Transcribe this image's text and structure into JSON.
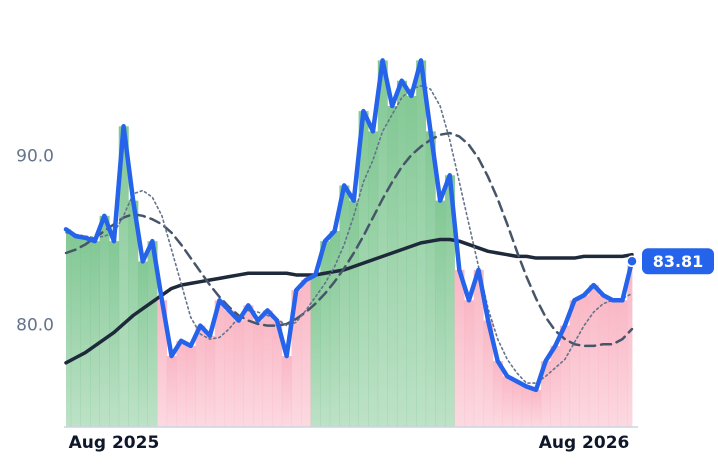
{
  "chart_data": {
    "type": "line",
    "categories": [
      null,
      null,
      null,
      null,
      null,
      "Aug 2025",
      null,
      null,
      null,
      null,
      null,
      null,
      null,
      null,
      null,
      null,
      null,
      null,
      null,
      null,
      null,
      null,
      null,
      null,
      null,
      null,
      null,
      null,
      null,
      null,
      null,
      null,
      null,
      null,
      null,
      null,
      null,
      null,
      null,
      null,
      null,
      null,
      null,
      null,
      null,
      null,
      null,
      null,
      null,
      null,
      null,
      null,
      null,
      null,
      "Aug 2026",
      null,
      null,
      null,
      null,
      null
    ],
    "series": [
      {
        "color": "#2563eb",
        "line_style": "solid",
        "line_width": 4.5,
        "values": [
          85.7,
          85.3,
          85.2,
          85.0,
          86.5,
          85.0,
          91.8,
          87.4,
          83.8,
          85.0,
          81.5,
          78.2,
          79.1,
          78.8,
          80.0,
          79.4,
          81.5,
          80.9,
          80.3,
          81.2,
          80.3,
          80.9,
          80.3,
          78.2,
          82.1,
          82.7,
          83.0,
          85.0,
          85.6,
          88.3,
          87.4,
          92.7,
          91.5,
          95.7,
          93.0,
          94.5,
          93.6,
          95.7,
          91.5,
          87.4,
          88.9,
          83.3,
          81.5,
          83.3,
          80.3,
          77.9,
          77.0,
          76.7,
          76.4,
          76.2,
          77.9,
          78.8,
          80.0,
          81.5,
          81.8,
          82.4,
          81.8,
          81.5,
          81.5,
          83.81
        ]
      },
      {
        "color": "#64748b",
        "line_style": "dotted",
        "line_width": 1.6,
        "values": [
          85.5,
          85.4,
          85.3,
          85.2,
          85.3,
          85.5,
          86.5,
          87.8,
          88.0,
          87.6,
          86.5,
          84.5,
          82.5,
          80.5,
          79.5,
          79.2,
          79.3,
          79.8,
          80.5,
          80.9,
          80.8,
          80.6,
          80.4,
          80.0,
          80.2,
          80.9,
          81.7,
          82.5,
          83.5,
          84.8,
          86.5,
          88.5,
          89.8,
          91.5,
          92.5,
          93.5,
          94.0,
          94.2,
          94.0,
          93.0,
          91.0,
          88.5,
          86.0,
          83.5,
          81.0,
          79.2,
          78.0,
          77.2,
          76.6,
          76.6,
          77.0,
          77.5,
          78.0,
          79.0,
          80.0,
          80.8,
          81.3,
          81.5,
          81.6,
          81.9
        ]
      },
      {
        "color": "#475569",
        "line_style": "dashed",
        "line_width": 2.5,
        "values": [
          84.3,
          84.5,
          84.8,
          85.2,
          85.6,
          86.0,
          86.4,
          86.6,
          86.5,
          86.3,
          86.0,
          85.5,
          84.8,
          84.0,
          83.2,
          82.4,
          81.7,
          81.1,
          80.6,
          80.3,
          80.1,
          80.0,
          80.0,
          80.1,
          80.4,
          80.8,
          81.3,
          81.9,
          82.6,
          83.4,
          84.3,
          85.3,
          86.4,
          87.5,
          88.5,
          89.4,
          90.1,
          90.6,
          91.0,
          91.3,
          91.4,
          91.2,
          90.7,
          89.9,
          88.8,
          87.5,
          86.0,
          84.4,
          82.9,
          81.6,
          80.5,
          79.7,
          79.2,
          78.9,
          78.8,
          78.8,
          78.9,
          78.9,
          79.2,
          79.8
        ]
      },
      {
        "color": "#1e293b",
        "line_style": "solid",
        "line_width": 3.5,
        "values": [
          77.8,
          78.1,
          78.4,
          78.8,
          79.2,
          79.6,
          80.1,
          80.6,
          81.0,
          81.4,
          81.8,
          82.2,
          82.4,
          82.5,
          82.6,
          82.7,
          82.8,
          82.9,
          83.0,
          83.1,
          83.1,
          83.1,
          83.1,
          83.1,
          83.0,
          83.0,
          83.0,
          83.1,
          83.2,
          83.3,
          83.5,
          83.7,
          83.9,
          84.1,
          84.3,
          84.5,
          84.7,
          84.9,
          85.0,
          85.1,
          85.1,
          85.0,
          84.8,
          84.6,
          84.4,
          84.3,
          84.2,
          84.1,
          84.1,
          84.0,
          84.0,
          84.0,
          84.0,
          84.0,
          84.1,
          84.1,
          84.1,
          84.1,
          84.1,
          84.2
        ]
      }
    ],
    "fill_above_color": "#7cc58f",
    "fill_below_color": "#f9b3c2",
    "ylim": [
      74,
      97.5
    ],
    "yticks": [
      {
        "value": 80,
        "label": "80.0"
      },
      {
        "value": 90,
        "label": "90.0"
      }
    ],
    "grid": false,
    "last_value_badge": true
  }
}
